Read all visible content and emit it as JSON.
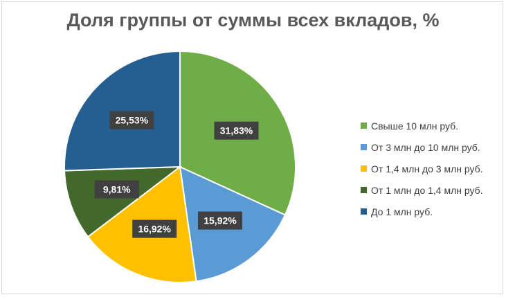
{
  "chart_data": {
    "type": "pie",
    "title": "Доля группы от суммы всех вкладов, %",
    "slices": [
      {
        "label": "Свыше 10 млн руб.",
        "value": 31.83,
        "value_label": "31,83%",
        "color": "#70ad47"
      },
      {
        "label": "От 3 млн до 10 млн руб.",
        "value": 15.92,
        "value_label": "15,92%",
        "color": "#5b9bd5"
      },
      {
        "label": "От 1,4 млн до 3 млн руб.",
        "value": 16.92,
        "value_label": "16,92%",
        "color": "#ffc000"
      },
      {
        "label": "От 1 млн до 1,4 млн руб.",
        "value": 9.81,
        "value_label": "9,81%",
        "color": "#43682b"
      },
      {
        "label": "До 1 млн руб.",
        "value": 25.53,
        "value_label": "25,53%",
        "color": "#255e91"
      }
    ],
    "legend_position": "right",
    "data_label_background": "#404040",
    "data_label_color": "#ffffff"
  }
}
